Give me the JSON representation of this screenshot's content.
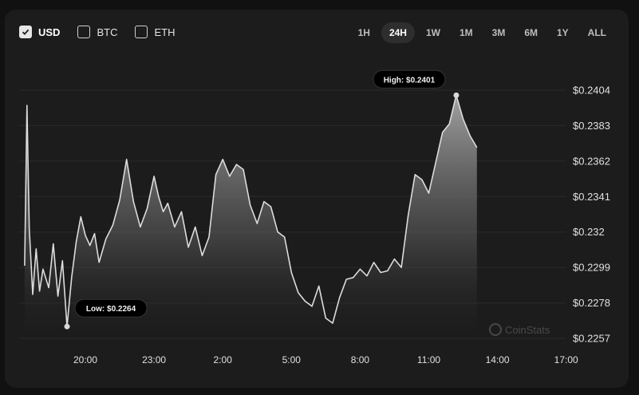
{
  "currencies": [
    {
      "label": "USD",
      "checked": true
    },
    {
      "label": "BTC",
      "checked": false
    },
    {
      "label": "ETH",
      "checked": false
    }
  ],
  "ranges": [
    {
      "label": "1H",
      "active": false
    },
    {
      "label": "24H",
      "active": true
    },
    {
      "label": "1W",
      "active": false
    },
    {
      "label": "1M",
      "active": false
    },
    {
      "label": "3M",
      "active": false
    },
    {
      "label": "6M",
      "active": false
    },
    {
      "label": "1Y",
      "active": false
    },
    {
      "label": "ALL",
      "active": false
    }
  ],
  "watermark": "CoinStats",
  "chart_data": {
    "type": "area",
    "x_tick_labels": [
      "20:00",
      "23:00",
      "2:00",
      "5:00",
      "8:00",
      "11:00",
      "14:00",
      "17:00"
    ],
    "y_tick_labels": [
      "$0.2404",
      "$0.2383",
      "$0.2362",
      "$0.2341",
      "$0.232",
      "$0.2299",
      "$0.2278",
      "$0.2257"
    ],
    "ylim": [
      0.2257,
      0.2404
    ],
    "x_hours": [
      -2.65,
      -2.55,
      -2.45,
      -2.3,
      -2.15,
      -2.0,
      -1.85,
      -1.6,
      -1.4,
      -1.2,
      -1.0,
      -0.8,
      -0.6,
      -0.4,
      -0.2,
      0.0,
      0.2,
      0.4,
      0.6,
      0.9,
      1.2,
      1.5,
      1.8,
      2.1,
      2.4,
      2.7,
      3.0,
      3.2,
      3.4,
      3.6,
      3.9,
      4.2,
      4.5,
      4.8,
      5.1,
      5.4,
      5.7,
      6.0,
      6.3,
      6.6,
      6.9,
      7.2,
      7.5,
      7.8,
      8.1,
      8.4,
      8.7,
      9.0,
      9.3,
      9.6,
      9.9,
      10.2,
      10.5,
      10.8,
      11.1,
      11.4,
      11.7,
      12.0,
      12.3,
      12.6,
      12.9,
      13.2,
      13.5,
      13.8,
      14.1,
      14.4,
      14.7,
      15.0,
      15.3,
      15.6,
      15.9,
      16.2,
      16.5,
      16.8,
      17.1
    ],
    "series": [
      {
        "values": [
          0.23,
          0.2395,
          0.2322,
          0.2283,
          0.231,
          0.2285,
          0.2298,
          0.2287,
          0.2313,
          0.2282,
          0.2303,
          0.2264,
          0.2293,
          0.2314,
          0.2329,
          0.2318,
          0.2312,
          0.2319,
          0.2302,
          0.2316,
          0.2324,
          0.2339,
          0.2363,
          0.2338,
          0.2323,
          0.2334,
          0.2353,
          0.2341,
          0.2332,
          0.2337,
          0.2323,
          0.2332,
          0.2311,
          0.2323,
          0.2306,
          0.2317,
          0.2354,
          0.2363,
          0.2353,
          0.236,
          0.2357,
          0.2336,
          0.2325,
          0.2338,
          0.2335,
          0.232,
          0.2317,
          0.2296,
          0.2284,
          0.2279,
          0.2276,
          0.2288,
          0.2269,
          0.2266,
          0.2281,
          0.2292,
          0.2293,
          0.2298,
          0.2294,
          0.2302,
          0.2296,
          0.2297,
          0.2304,
          0.2299,
          0.233,
          0.2354,
          0.2351,
          0.2343,
          0.2361,
          0.2379,
          0.2384,
          0.2401,
          0.2387,
          0.2377,
          0.237
        ]
      }
    ],
    "high_label": "High: $0.2401",
    "low_label": "Low: $0.2264",
    "grid": true
  }
}
